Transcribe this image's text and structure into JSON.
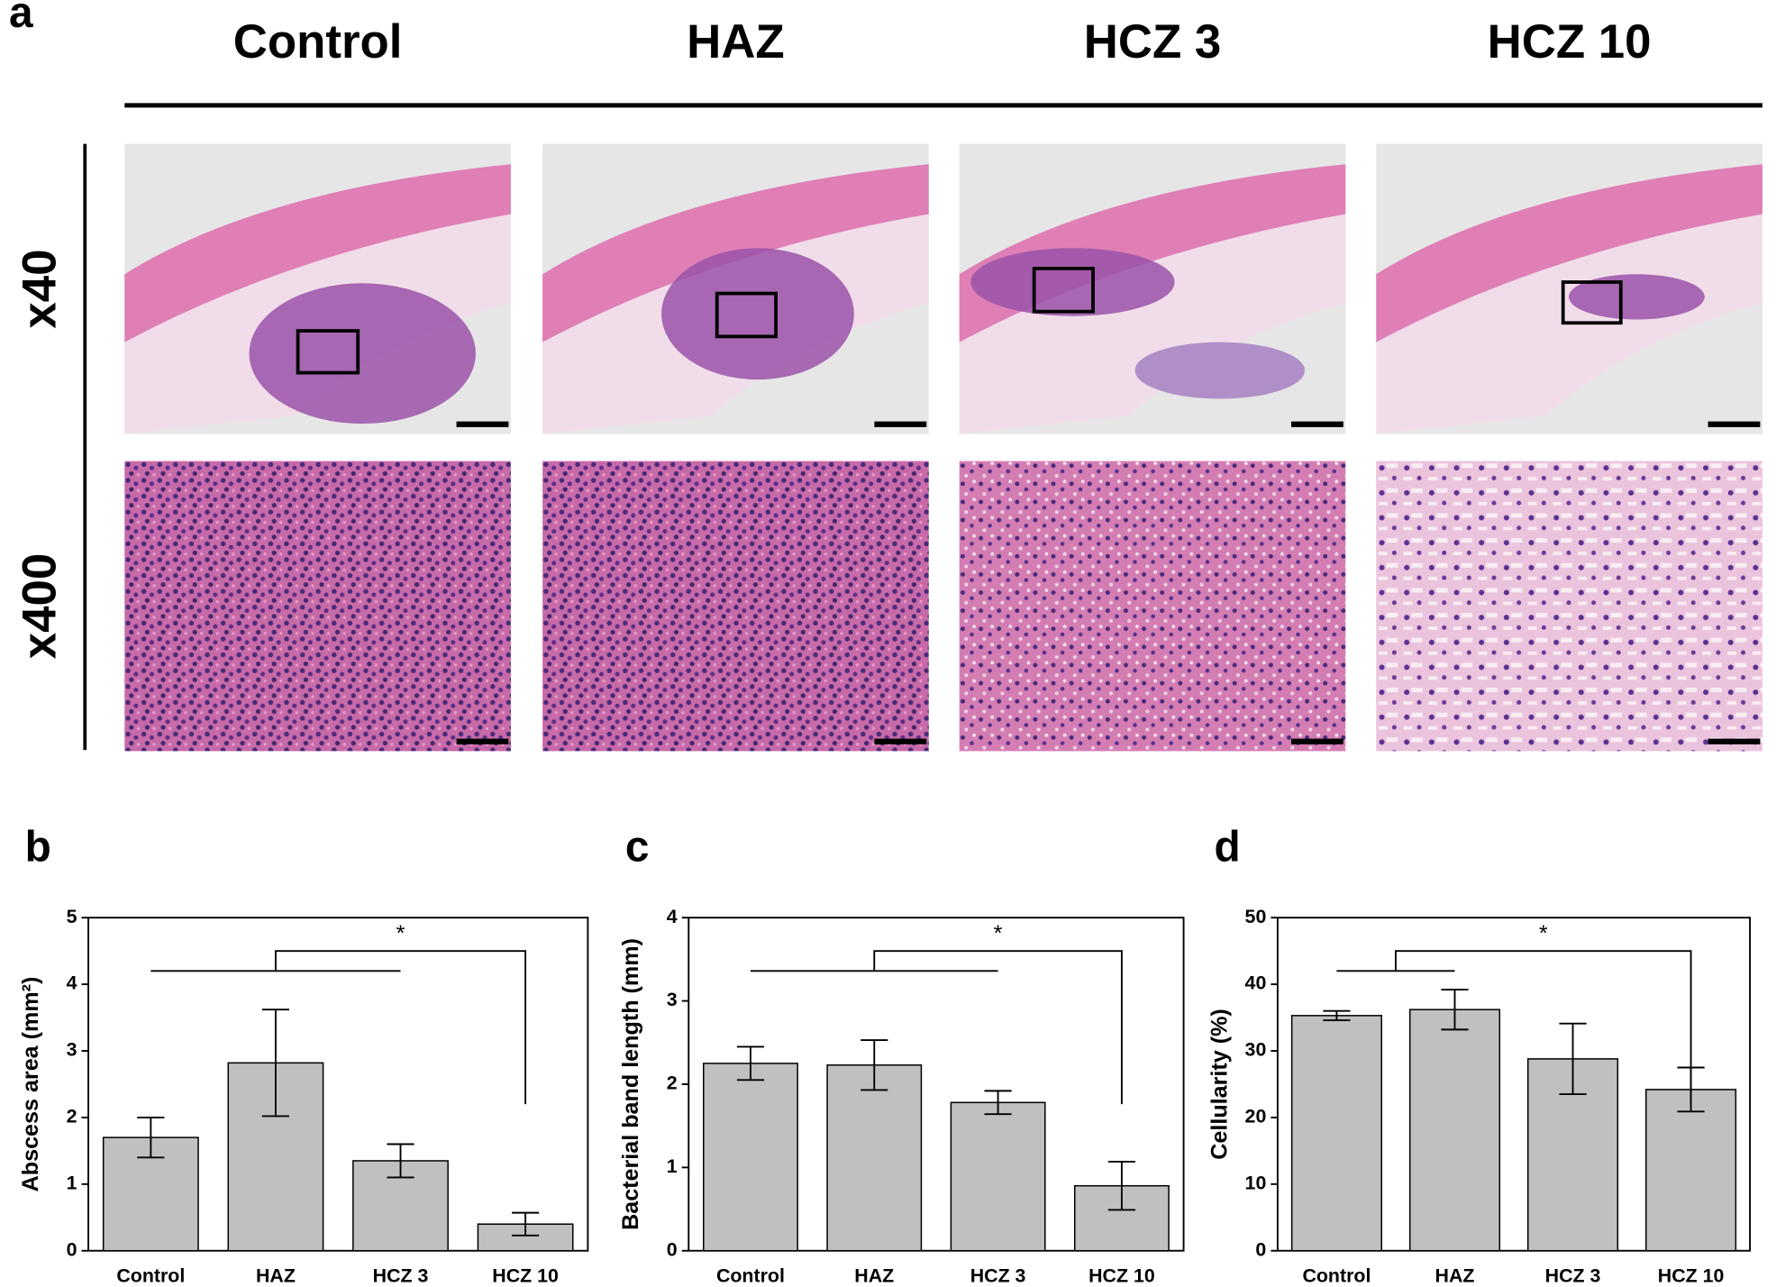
{
  "panel_a": {
    "label": "a",
    "columns": [
      "Control",
      "HAZ",
      "HCZ 3",
      "HCZ 10"
    ],
    "rows": [
      "x40",
      "x400"
    ]
  },
  "chart_data": [
    {
      "type": "bar",
      "panel": "b",
      "y_label": "Abscess area (mm²)",
      "categories": [
        "Control",
        "HAZ",
        "HCZ 3",
        "HCZ 10"
      ],
      "values": [
        1.7,
        2.82,
        1.35,
        0.4
      ],
      "errors": [
        0.3,
        0.8,
        0.25,
        0.17
      ],
      "color": "#c0c0c0",
      "ylim": [
        0,
        5
      ],
      "yticks": [
        0,
        1,
        2,
        3,
        4,
        5
      ],
      "annotation": "*"
    },
    {
      "type": "bar",
      "panel": "c",
      "y_label": "Bacterial band length (mm)",
      "categories": [
        "Control",
        "HAZ",
        "HCZ 3",
        "HCZ 10"
      ],
      "values": [
        2.25,
        2.23,
        1.78,
        0.78
      ],
      "errors": [
        0.2,
        0.3,
        0.14,
        0.29
      ],
      "color": "#c0c0c0",
      "ylim": [
        0,
        4
      ],
      "yticks": [
        0,
        1,
        2,
        3,
        4
      ],
      "annotation": "*"
    },
    {
      "type": "bar",
      "panel": "d",
      "y_label": "Cellularity (%)",
      "categories": [
        "Control",
        "HAZ",
        "HCZ 3",
        "HCZ 10"
      ],
      "values": [
        35.3,
        36.2,
        28.8,
        24.2
      ],
      "errors": [
        0.7,
        3,
        5.3,
        3.3
      ],
      "color": "#c0c0c0",
      "ylim": [
        0,
        50
      ],
      "yticks": [
        0,
        10,
        20,
        30,
        40,
        50
      ],
      "annotation": "*"
    }
  ]
}
